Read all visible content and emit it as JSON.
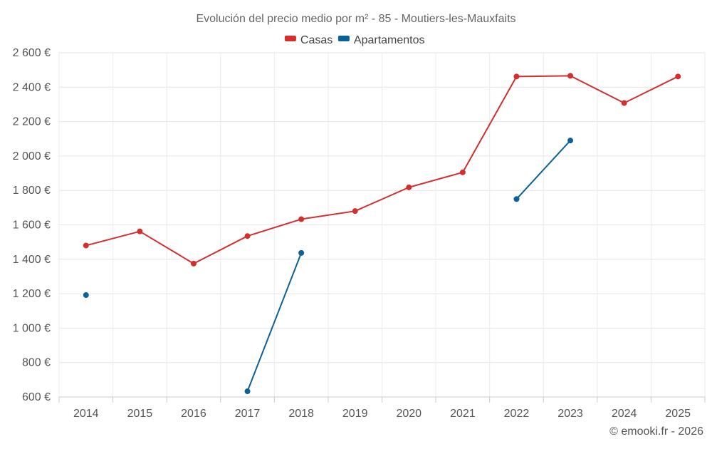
{
  "chart_data": {
    "type": "line",
    "title": "Evolución del precio medio por m² - 85 - Moutiers-les-Mauxfaits",
    "credit": "© emooki.fr - 2026",
    "categories": [
      "2014",
      "2015",
      "2016",
      "2017",
      "2018",
      "2019",
      "2020",
      "2021",
      "2022",
      "2023",
      "2024",
      "2025"
    ],
    "y_ticks": [
      600,
      800,
      1000,
      1200,
      1400,
      1600,
      1800,
      2000,
      2200,
      2400,
      2600
    ],
    "y_tick_labels": [
      "600 €",
      "800 €",
      "1 000 €",
      "1 200 €",
      "1 400 €",
      "1 600 €",
      "1 800 €",
      "2 000 €",
      "2 200 €",
      "2 400 €",
      "2 600 €"
    ],
    "ylim": [
      600,
      2600
    ],
    "legend_position": "top-center",
    "series": [
      {
        "name": "Casas",
        "color": "#d32f2f",
        "values": [
          1480,
          1562,
          1375,
          1535,
          1633,
          1680,
          1818,
          1905,
          2462,
          2466,
          2308,
          2462
        ]
      },
      {
        "name": "Apartamentos",
        "color": "#0d6199",
        "values": [
          1192,
          null,
          null,
          633,
          1437,
          null,
          null,
          null,
          1750,
          2090,
          null,
          null
        ]
      }
    ]
  }
}
